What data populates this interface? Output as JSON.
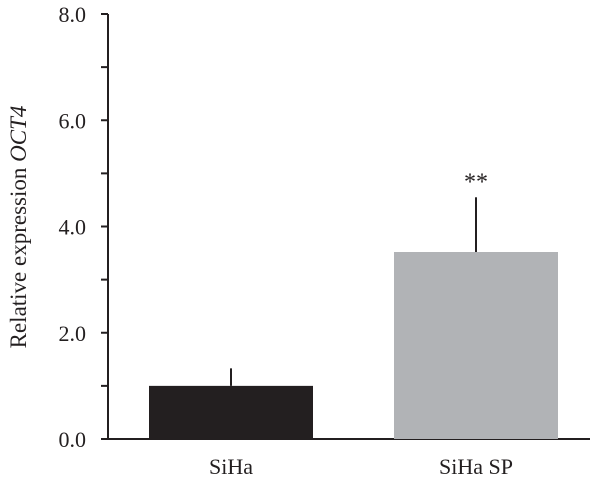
{
  "chart_data": {
    "type": "bar",
    "categories": [
      "SiHa",
      "SiHa SP"
    ],
    "values": [
      1.0,
      3.52
    ],
    "errors": [
      0.33,
      1.03
    ],
    "bar_colors": [
      "#231f20",
      "#b1b3b6"
    ],
    "significance": [
      "",
      "**"
    ],
    "ylabel": {
      "prefix": "Relative expression ",
      "gene": "OCT4"
    },
    "ylim": [
      0,
      8
    ],
    "yticks": [
      0,
      2,
      4,
      6,
      8
    ],
    "ytick_labels": [
      "0.0",
      "2.0",
      "4.0",
      "6.0",
      "8.0"
    ],
    "grid": false,
    "legend": "none"
  }
}
